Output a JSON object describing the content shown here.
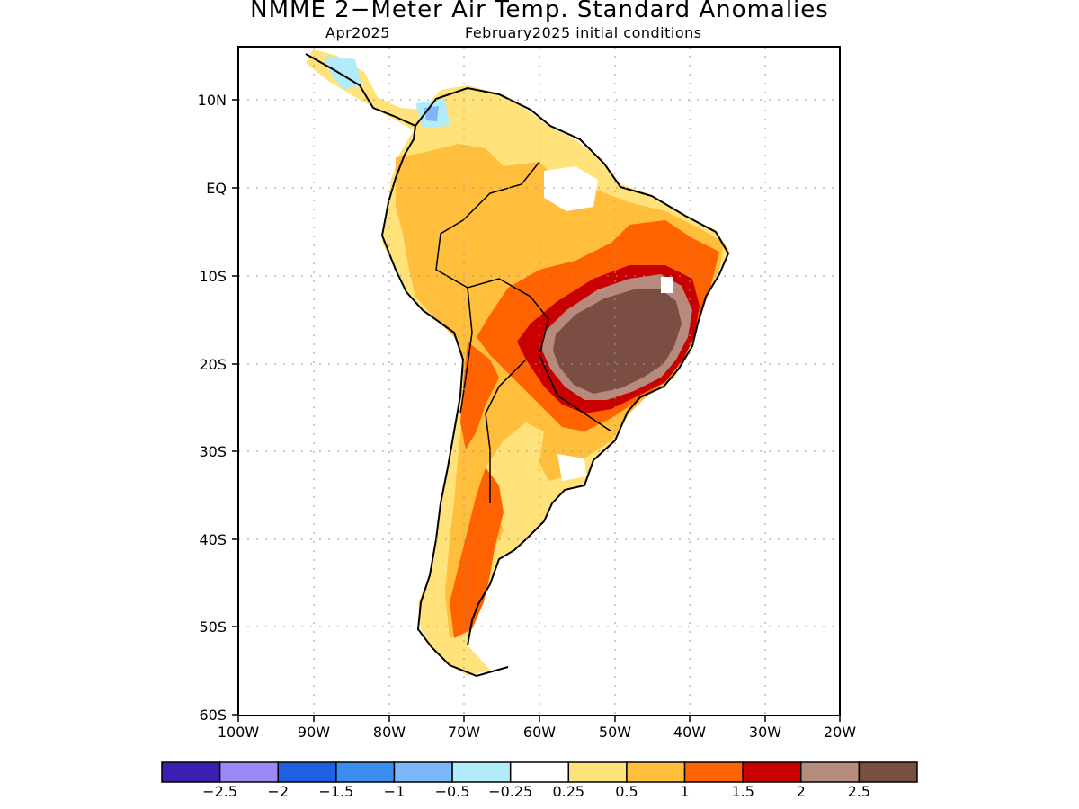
{
  "title": "NMME 2−Meter Air Temp. Standard Anomalies",
  "subtitle_left": "Apr2025",
  "subtitle_right": "February2025 initial conditions",
  "map": {
    "lat_ticks": [
      "10N",
      "EQ",
      "10S",
      "20S",
      "30S",
      "40S",
      "50S",
      "60S"
    ],
    "lon_ticks": [
      "100W",
      "90W",
      "80W",
      "70W",
      "60W",
      "50W",
      "40W",
      "30W",
      "20W"
    ],
    "lon_range": [
      -100,
      -20
    ],
    "lat_range": [
      -60,
      16
    ],
    "gridlines": "dotted",
    "anomaly_regions": [
      {
        "level": "0.5 to 1",
        "area": "northern and western South America, Andes, Patagonia coast"
      },
      {
        "level": "1 to 1.5",
        "area": "central Brazil, Bolivia, northern Argentina"
      },
      {
        "level": "1.5 to 2",
        "area": "eastern Brazil, Paraguay, central Argentina, Patagonia interior"
      },
      {
        "level": "2 to 2.5",
        "area": "ring around central-eastern Brazil"
      },
      {
        "level": "> 2.5",
        "area": "central-eastern Brazil core"
      },
      {
        "level": "-0.5 to -1",
        "area": "northern Colombia, Central America"
      }
    ]
  },
  "colorbar": {
    "colors": [
      "#3b1fb3",
      "#9a88f5",
      "#1f5fe0",
      "#3a8ff0",
      "#7ab8fa",
      "#b2ecfa",
      "#ffffff",
      "#ffe27a",
      "#ffbe3c",
      "#ff6200",
      "#c80000",
      "#b68a7c",
      "#7a4e42"
    ],
    "labels": [
      "−2.5",
      "−2",
      "−1.5",
      "−1",
      "−0.5",
      "−0.25",
      "0.25",
      "0.5",
      "1",
      "1.5",
      "2",
      "2.5"
    ]
  }
}
